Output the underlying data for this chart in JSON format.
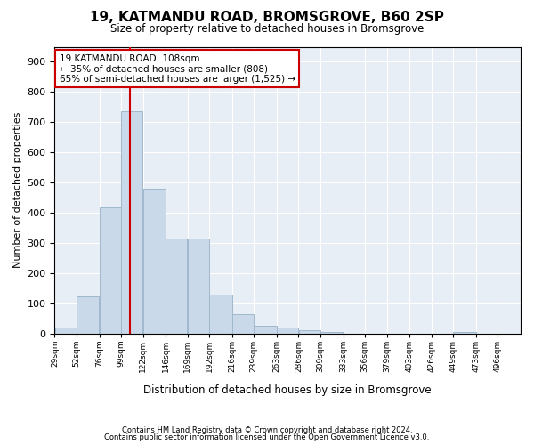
{
  "title": "19, KATMANDU ROAD, BROMSGROVE, B60 2SP",
  "subtitle": "Size of property relative to detached houses in Bromsgrove",
  "xlabel": "Distribution of detached houses by size in Bromsgrove",
  "ylabel": "Number of detached properties",
  "footnote1": "Contains HM Land Registry data © Crown copyright and database right 2024.",
  "footnote2": "Contains public sector information licensed under the Open Government Licence v3.0.",
  "annotation_title": "19 KATMANDU ROAD: 108sqm",
  "annotation_line1": "← 35% of detached houses are smaller (808)",
  "annotation_line2": "65% of semi-detached houses are larger (1,525) →",
  "property_size": 108,
  "bar_color": "#c9d9ea",
  "bar_edge_color": "#a0b8cc",
  "vline_color": "#cc0000",
  "annotation_box_edge": "#cc0000",
  "axes_bg_color": "#e8eef5",
  "bin_edges": [
    29,
    52,
    76,
    99,
    122,
    146,
    169,
    192,
    216,
    239,
    263,
    286,
    309,
    333,
    356,
    379,
    403,
    426,
    449,
    473,
    496,
    520
  ],
  "bar_heights": [
    20,
    122,
    418,
    735,
    480,
    315,
    315,
    130,
    65,
    25,
    20,
    10,
    5,
    0,
    0,
    0,
    0,
    0,
    5,
    0,
    0
  ],
  "tick_labels": [
    "29sqm",
    "52sqm",
    "76sqm",
    "99sqm",
    "122sqm",
    "146sqm",
    "169sqm",
    "192sqm",
    "216sqm",
    "239sqm",
    "263sqm",
    "286sqm",
    "309sqm",
    "333sqm",
    "356sqm",
    "379sqm",
    "403sqm",
    "426sqm",
    "449sqm",
    "473sqm",
    "496sqm"
  ],
  "ylim": [
    0,
    950
  ],
  "yticks": [
    0,
    100,
    200,
    300,
    400,
    500,
    600,
    700,
    800,
    900
  ]
}
